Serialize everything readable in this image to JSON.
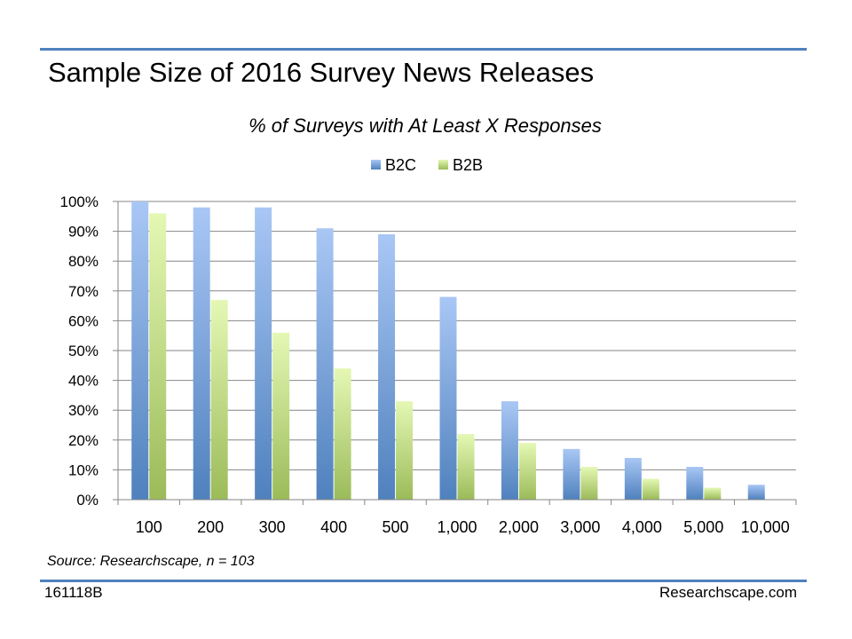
{
  "slide": {
    "title": "Sample Size of 2016 Survey News Releases",
    "source": "Source: Researchscape, n = 103",
    "footer_left": "161118B",
    "footer_right": "Researchscape.com",
    "accent_color": "#4f81bd"
  },
  "chart_data": {
    "type": "bar",
    "title": "% of Surveys with At Least X Responses",
    "xlabel": "",
    "ylabel": "",
    "categories": [
      "100",
      "200",
      "300",
      "400",
      "500",
      "1,000",
      "2,000",
      "3,000",
      "4,000",
      "5,000",
      "10,000"
    ],
    "series": [
      {
        "name": "B2C",
        "values": [
          100,
          98,
          98,
          91,
          89,
          68,
          33,
          17,
          14,
          11,
          5
        ],
        "color": "#4f81bd",
        "gradient_light": "#a9c7f5"
      },
      {
        "name": "B2B",
        "values": [
          96,
          67,
          56,
          44,
          33,
          22,
          19,
          11,
          7,
          4,
          0
        ],
        "color": "#9bbb59",
        "gradient_light": "#e4f8b4"
      }
    ],
    "ylim": [
      0,
      100
    ],
    "yticks": [
      0,
      10,
      20,
      30,
      40,
      50,
      60,
      70,
      80,
      90,
      100
    ],
    "ytick_labels": [
      "0%",
      "10%",
      "20%",
      "30%",
      "40%",
      "50%",
      "60%",
      "70%",
      "80%",
      "90%",
      "100%"
    ],
    "grid": true,
    "legend_position": "top-center"
  }
}
